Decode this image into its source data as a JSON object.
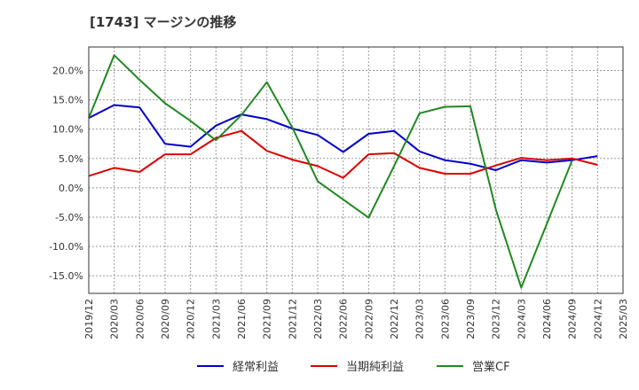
{
  "chart_data": {
    "type": "line",
    "title": "[1743]  マージンの推移",
    "xlabel": "",
    "ylabel": "",
    "ylim": [
      -18,
      24
    ],
    "yticks": [
      20,
      15,
      10,
      5,
      0,
      -5,
      -10,
      -15
    ],
    "ytick_labels": [
      "20.0%",
      "15.0%",
      "10.0%",
      "5.0%",
      "0.0%",
      "-5.0%",
      "-10.0%",
      "-15.0%"
    ],
    "x": [
      "2019/12",
      "2020/03",
      "2020/06",
      "2020/09",
      "2020/12",
      "2021/03",
      "2021/06",
      "2021/09",
      "2021/12",
      "2022/03",
      "2022/06",
      "2022/09",
      "2022/12",
      "2023/03",
      "2023/06",
      "2023/09",
      "2023/12",
      "2024/03",
      "2024/06",
      "2024/09",
      "2024/12",
      "2025/03"
    ],
    "grid": true,
    "legend_position": "bottom",
    "series": [
      {
        "name": "経常利益",
        "color": "#0000cc",
        "values": [
          11.9,
          14.1,
          13.7,
          7.5,
          7.0,
          10.6,
          12.5,
          11.7,
          10.1,
          9.0,
          6.1,
          9.2,
          9.7,
          6.2,
          4.7,
          4.1,
          3.0,
          4.7,
          4.3,
          4.7,
          5.4,
          null
        ]
      },
      {
        "name": "当期純利益",
        "color": "#dd0000",
        "values": [
          2.0,
          3.4,
          2.7,
          5.7,
          5.7,
          8.5,
          9.7,
          6.3,
          4.8,
          3.7,
          1.7,
          5.7,
          5.9,
          3.4,
          2.4,
          2.4,
          3.8,
          5.1,
          4.7,
          5.0,
          3.9,
          null
        ]
      },
      {
        "name": "営業CF",
        "color": "#228822",
        "values": [
          11.9,
          22.6,
          18.4,
          14.4,
          11.4,
          8.1,
          12.4,
          18.0,
          10.3,
          1.1,
          -2.0,
          -5.1,
          3.7,
          12.7,
          13.8,
          13.9,
          -3.7,
          -17.0,
          -6.2,
          4.7,
          null,
          null
        ]
      }
    ]
  }
}
